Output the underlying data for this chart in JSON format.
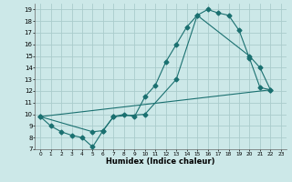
{
  "title": "",
  "xlabel": "Humidex (Indice chaleur)",
  "ylabel": "",
  "bg_color": "#cce8e8",
  "grid_color": "#aacccc",
  "line_color": "#1a7070",
  "xlim": [
    -0.5,
    23.5
  ],
  "ylim": [
    7,
    19.5
  ],
  "xticks": [
    0,
    1,
    2,
    3,
    4,
    5,
    6,
    7,
    8,
    9,
    10,
    11,
    12,
    13,
    14,
    15,
    16,
    17,
    18,
    19,
    20,
    21,
    22,
    23
  ],
  "yticks": [
    7,
    8,
    9,
    10,
    11,
    12,
    13,
    14,
    15,
    16,
    17,
    18,
    19
  ],
  "line1_x": [
    0,
    1,
    2,
    3,
    4,
    5,
    6,
    7,
    8,
    9,
    10,
    11,
    12,
    13,
    14,
    15,
    16,
    17,
    18,
    19,
    20,
    21,
    22
  ],
  "line1_y": [
    9.8,
    9.0,
    8.5,
    8.2,
    8.0,
    7.2,
    8.6,
    9.8,
    10.0,
    9.8,
    11.5,
    12.5,
    14.5,
    16.0,
    17.5,
    18.5,
    19.0,
    18.7,
    18.5,
    17.2,
    14.8,
    12.3,
    12.1
  ],
  "line2_x": [
    0,
    5,
    6,
    7,
    10,
    13,
    15,
    20,
    21,
    22
  ],
  "line2_y": [
    9.8,
    8.5,
    8.6,
    9.8,
    10.0,
    13.0,
    18.5,
    15.0,
    14.0,
    12.1
  ],
  "line3_x": [
    0,
    22
  ],
  "line3_y": [
    9.8,
    12.1
  ],
  "marker": "D",
  "markersize": 2.5,
  "xlabel_fontsize": 6,
  "tick_fontsize": 5
}
